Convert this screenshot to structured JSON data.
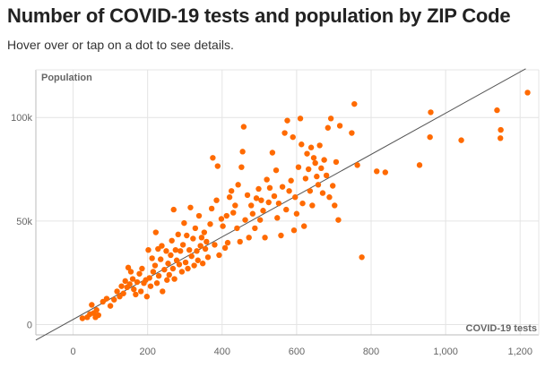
{
  "header": {
    "title": "Number of COVID-19 tests and population by ZIP Code",
    "subtitle": "Hover over or tap on a dot to see details."
  },
  "colors": {
    "dot": "#ff6a00",
    "trend": "#555555",
    "grid": "#e4e4e4",
    "axis": "#bbbbbb"
  },
  "chart_data": {
    "type": "scatter",
    "xlabel": "COVID-19 tests",
    "ylabel": "Population",
    "xlim": [
      -100,
      1250
    ],
    "ylim": [
      -5000,
      123000
    ],
    "x_ticks": [
      0,
      200,
      400,
      600,
      800,
      1000,
      1200
    ],
    "x_tick_labels": [
      "0",
      "200",
      "400",
      "600",
      "800",
      "1,000",
      "1,200"
    ],
    "y_ticks": [
      0,
      50000,
      100000
    ],
    "y_tick_labels": [
      "0",
      "50k",
      "100k"
    ],
    "grid": true,
    "trend_line": {
      "x": [
        -100,
        1215
      ],
      "y": [
        -7500,
        123500
      ]
    },
    "points": [
      {
        "x": 25,
        "y": 3000
      },
      {
        "x": 38,
        "y": 3500
      },
      {
        "x": 45,
        "y": 5000
      },
      {
        "x": 50,
        "y": 9500
      },
      {
        "x": 55,
        "y": 5500
      },
      {
        "x": 60,
        "y": 3500
      },
      {
        "x": 63,
        "y": 7000
      },
      {
        "x": 68,
        "y": 4500
      },
      {
        "x": 80,
        "y": 11000
      },
      {
        "x": 90,
        "y": 12500
      },
      {
        "x": 100,
        "y": 9000
      },
      {
        "x": 110,
        "y": 12000
      },
      {
        "x": 118,
        "y": 16000
      },
      {
        "x": 125,
        "y": 13500
      },
      {
        "x": 130,
        "y": 18500
      },
      {
        "x": 135,
        "y": 15000
      },
      {
        "x": 140,
        "y": 21000
      },
      {
        "x": 145,
        "y": 18000
      },
      {
        "x": 148,
        "y": 27500
      },
      {
        "x": 152,
        "y": 19500
      },
      {
        "x": 155,
        "y": 25500
      },
      {
        "x": 160,
        "y": 22000
      },
      {
        "x": 163,
        "y": 17000
      },
      {
        "x": 168,
        "y": 14500
      },
      {
        "x": 172,
        "y": 20500
      },
      {
        "x": 178,
        "y": 24500
      },
      {
        "x": 182,
        "y": 16000
      },
      {
        "x": 185,
        "y": 27000
      },
      {
        "x": 190,
        "y": 20000
      },
      {
        "x": 195,
        "y": 21500
      },
      {
        "x": 198,
        "y": 13500
      },
      {
        "x": 202,
        "y": 36000
      },
      {
        "x": 205,
        "y": 22500
      },
      {
        "x": 208,
        "y": 18500
      },
      {
        "x": 212,
        "y": 32000
      },
      {
        "x": 215,
        "y": 25500
      },
      {
        "x": 220,
        "y": 28500
      },
      {
        "x": 222,
        "y": 44500
      },
      {
        "x": 225,
        "y": 20000
      },
      {
        "x": 228,
        "y": 36500
      },
      {
        "x": 230,
        "y": 23500
      },
      {
        "x": 235,
        "y": 31500
      },
      {
        "x": 238,
        "y": 38000
      },
      {
        "x": 240,
        "y": 16000
      },
      {
        "x": 245,
        "y": 26500
      },
      {
        "x": 250,
        "y": 35500
      },
      {
        "x": 252,
        "y": 21500
      },
      {
        "x": 255,
        "y": 29500
      },
      {
        "x": 258,
        "y": 24000
      },
      {
        "x": 262,
        "y": 33500
      },
      {
        "x": 265,
        "y": 40500
      },
      {
        "x": 268,
        "y": 27000
      },
      {
        "x": 270,
        "y": 55500
      },
      {
        "x": 272,
        "y": 22000
      },
      {
        "x": 275,
        "y": 36000
      },
      {
        "x": 278,
        "y": 31000
      },
      {
        "x": 282,
        "y": 43500
      },
      {
        "x": 285,
        "y": 29000
      },
      {
        "x": 288,
        "y": 35500
      },
      {
        "x": 292,
        "y": 25500
      },
      {
        "x": 295,
        "y": 38500
      },
      {
        "x": 298,
        "y": 49000
      },
      {
        "x": 302,
        "y": 30000
      },
      {
        "x": 305,
        "y": 43000
      },
      {
        "x": 308,
        "y": 27000
      },
      {
        "x": 312,
        "y": 36000
      },
      {
        "x": 315,
        "y": 56500
      },
      {
        "x": 318,
        "y": 33000
      },
      {
        "x": 322,
        "y": 41500
      },
      {
        "x": 325,
        "y": 28500
      },
      {
        "x": 328,
        "y": 46500
      },
      {
        "x": 332,
        "y": 35500
      },
      {
        "x": 335,
        "y": 31000
      },
      {
        "x": 338,
        "y": 52500
      },
      {
        "x": 342,
        "y": 38000
      },
      {
        "x": 345,
        "y": 42000
      },
      {
        "x": 348,
        "y": 29500
      },
      {
        "x": 352,
        "y": 44500
      },
      {
        "x": 355,
        "y": 36500
      },
      {
        "x": 358,
        "y": 40000
      },
      {
        "x": 362,
        "y": 32500
      },
      {
        "x": 368,
        "y": 48500
      },
      {
        "x": 372,
        "y": 56000
      },
      {
        "x": 375,
        "y": 80500
      },
      {
        "x": 380,
        "y": 38500
      },
      {
        "x": 385,
        "y": 60000
      },
      {
        "x": 388,
        "y": 76500
      },
      {
        "x": 392,
        "y": 33500
      },
      {
        "x": 398,
        "y": 51000
      },
      {
        "x": 402,
        "y": 47500
      },
      {
        "x": 408,
        "y": 37000
      },
      {
        "x": 412,
        "y": 52500
      },
      {
        "x": 415,
        "y": 39500
      },
      {
        "x": 420,
        "y": 61500
      },
      {
        "x": 425,
        "y": 64500
      },
      {
        "x": 430,
        "y": 54000
      },
      {
        "x": 435,
        "y": 57500
      },
      {
        "x": 440,
        "y": 46500
      },
      {
        "x": 443,
        "y": 67500
      },
      {
        "x": 448,
        "y": 40000
      },
      {
        "x": 452,
        "y": 76000
      },
      {
        "x": 455,
        "y": 83500
      },
      {
        "x": 458,
        "y": 95500
      },
      {
        "x": 462,
        "y": 50500
      },
      {
        "x": 468,
        "y": 62500
      },
      {
        "x": 472,
        "y": 42000
      },
      {
        "x": 478,
        "y": 57500
      },
      {
        "x": 482,
        "y": 53500
      },
      {
        "x": 488,
        "y": 46500
      },
      {
        "x": 492,
        "y": 61000
      },
      {
        "x": 498,
        "y": 65500
      },
      {
        "x": 502,
        "y": 50500
      },
      {
        "x": 505,
        "y": 60000
      },
      {
        "x": 510,
        "y": 55000
      },
      {
        "x": 515,
        "y": 42000
      },
      {
        "x": 520,
        "y": 70000
      },
      {
        "x": 525,
        "y": 59000
      },
      {
        "x": 528,
        "y": 66000
      },
      {
        "x": 535,
        "y": 83000
      },
      {
        "x": 540,
        "y": 62000
      },
      {
        "x": 545,
        "y": 74500
      },
      {
        "x": 548,
        "y": 51500
      },
      {
        "x": 552,
        "y": 58500
      },
      {
        "x": 558,
        "y": 43000
      },
      {
        "x": 562,
        "y": 66500
      },
      {
        "x": 568,
        "y": 92500
      },
      {
        "x": 572,
        "y": 55500
      },
      {
        "x": 575,
        "y": 98500
      },
      {
        "x": 580,
        "y": 64500
      },
      {
        "x": 585,
        "y": 69500
      },
      {
        "x": 590,
        "y": 90500
      },
      {
        "x": 593,
        "y": 45500
      },
      {
        "x": 596,
        "y": 61500
      },
      {
        "x": 600,
        "y": 53500
      },
      {
        "x": 605,
        "y": 76000
      },
      {
        "x": 610,
        "y": 99500
      },
      {
        "x": 613,
        "y": 87000
      },
      {
        "x": 616,
        "y": 58500
      },
      {
        "x": 620,
        "y": 47500
      },
      {
        "x": 624,
        "y": 70500
      },
      {
        "x": 628,
        "y": 82500
      },
      {
        "x": 632,
        "y": 75000
      },
      {
        "x": 636,
        "y": 64500
      },
      {
        "x": 639,
        "y": 85500
      },
      {
        "x": 642,
        "y": 57500
      },
      {
        "x": 646,
        "y": 80500
      },
      {
        "x": 650,
        "y": 78000
      },
      {
        "x": 654,
        "y": 71500
      },
      {
        "x": 658,
        "y": 67500
      },
      {
        "x": 662,
        "y": 86500
      },
      {
        "x": 666,
        "y": 75500
      },
      {
        "x": 670,
        "y": 63500
      },
      {
        "x": 674,
        "y": 79500
      },
      {
        "x": 680,
        "y": 72000
      },
      {
        "x": 684,
        "y": 95000
      },
      {
        "x": 688,
        "y": 61500
      },
      {
        "x": 692,
        "y": 99500
      },
      {
        "x": 697,
        "y": 67000
      },
      {
        "x": 702,
        "y": 57500
      },
      {
        "x": 706,
        "y": 78500
      },
      {
        "x": 712,
        "y": 50500
      },
      {
        "x": 716,
        "y": 96000
      },
      {
        "x": 748,
        "y": 92500
      },
      {
        "x": 755,
        "y": 106500
      },
      {
        "x": 763,
        "y": 77000
      },
      {
        "x": 775,
        "y": 32500
      },
      {
        "x": 815,
        "y": 74000
      },
      {
        "x": 838,
        "y": 73500
      },
      {
        "x": 930,
        "y": 77000
      },
      {
        "x": 958,
        "y": 90500
      },
      {
        "x": 960,
        "y": 102500
      },
      {
        "x": 1042,
        "y": 89000
      },
      {
        "x": 1138,
        "y": 103500
      },
      {
        "x": 1147,
        "y": 90000
      },
      {
        "x": 1148,
        "y": 94000
      },
      {
        "x": 1220,
        "y": 112000
      }
    ]
  }
}
